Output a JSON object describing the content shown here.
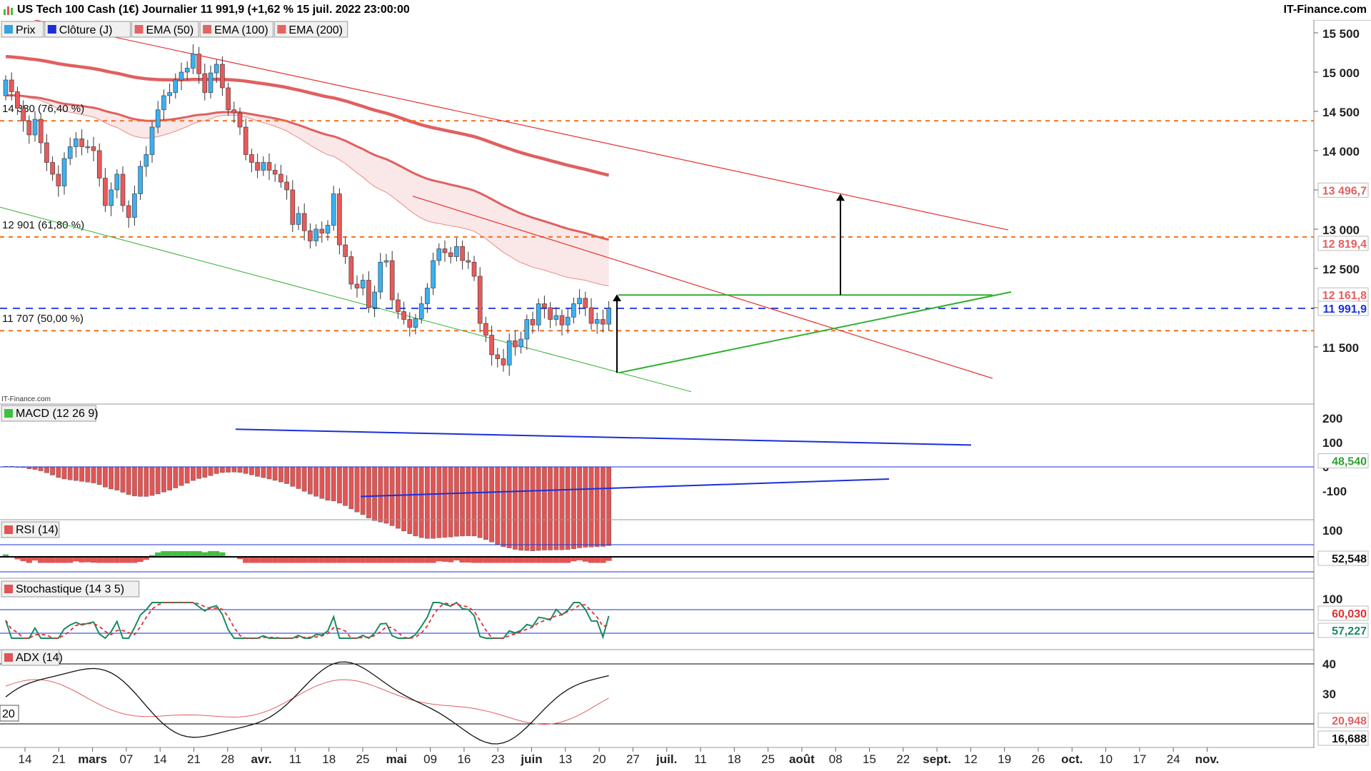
{
  "header": {
    "title": "US Tech 100 Cash (1€) Journalier 11 991,9 (+1,62 % 15 juil. 2022 23:00:00",
    "brand": "IT-Finance.com"
  },
  "legend": [
    {
      "label": "Prix",
      "color": "#3aa0e0"
    },
    {
      "label": "Clôture (J)",
      "color": "#1a2fd8"
    },
    {
      "label": "EMA (50)",
      "color": "#e06666"
    },
    {
      "label": "EMA (100)",
      "color": "#e06666"
    },
    {
      "label": "EMA (200)",
      "color": "#e06666"
    }
  ],
  "watermark": "IT-Finance.com",
  "colors": {
    "up": "#3cb0f0",
    "down": "#e85a5a",
    "ema": "#e06060",
    "fib": "#f07020",
    "close_line": "#1a2fd8",
    "channel": "#e83030",
    "triangle": "#30b030",
    "macd_up": "#40c040",
    "macd_down": "#e05555",
    "stoch_k": "#1a8a60",
    "stoch_d": "#e03030"
  },
  "panels": {
    "macd": {
      "label": "MACD (12 26 9)",
      "value": "48,540",
      "ticks": [
        "200",
        "100",
        "0",
        "-100"
      ]
    },
    "rsi": {
      "label": "RSI (14)",
      "value": "52,548",
      "ticks": [
        "100"
      ]
    },
    "stoch": {
      "label": "Stochastique (14 3 5)",
      "value_k": "60,030",
      "value_d": "57,227",
      "ticks": [
        "100"
      ]
    },
    "adx": {
      "label": "ADX (14)",
      "value_1": "20,948",
      "value_2": "16,688",
      "ticks": [
        "40",
        "30"
      ],
      "side_label": "20"
    }
  },
  "chart_data": {
    "type": "candlestick",
    "title": "US Tech 100 Cash (1€) Journalier",
    "last_close": 11991.9,
    "y_ticks": [
      "15 500",
      "15 000",
      "14 500",
      "14 000",
      "13 500",
      "13 000",
      "12 500",
      "12 000",
      "11 500"
    ],
    "fib_levels": [
      {
        "label": "14 380 (76,40 %)",
        "value": 14380
      },
      {
        "label": "12 901 (61,80 %)",
        "value": 12901
      },
      {
        "label": "11 707 (50,00 %)",
        "value": 11707
      }
    ],
    "price_tags": [
      {
        "label": "13 496,7",
        "value": 13496.7,
        "color": "#e06060"
      },
      {
        "label": "12 819,4",
        "value": 12819.4,
        "color": "#e06060"
      },
      {
        "label": "12 161,8",
        "value": 12161.8,
        "color": "#e06060"
      },
      {
        "label": "11 991,9",
        "value": 11991.9,
        "color": "#1a2fd8"
      }
    ],
    "x_labels": [
      "14",
      "21",
      "mars",
      "07",
      "14",
      "21",
      "28",
      "avr.",
      "11",
      "18",
      "25",
      "mai",
      "09",
      "16",
      "23",
      "juin",
      "13",
      "20",
      "27",
      "juil.",
      "11",
      "18",
      "25",
      "août",
      "08",
      "15",
      "22",
      "sept.",
      "12",
      "19",
      "26",
      "oct.",
      "10",
      "17",
      "24",
      "nov."
    ],
    "closes": [
      14900,
      14750,
      14540,
      14380,
      14200,
      14400,
      14100,
      13850,
      13700,
      13550,
      13900,
      14050,
      14150,
      14050,
      14050,
      14000,
      13650,
      13300,
      13500,
      13700,
      13300,
      13150,
      13450,
      13800,
      13950,
      14300,
      14520,
      14700,
      14740,
      14900,
      15000,
      15050,
      15230,
      14980,
      14740,
      14990,
      15100,
      14800,
      14520,
      14480,
      14300,
      13950,
      13850,
      13750,
      13850,
      13750,
      13700,
      13600,
      13500,
      13060,
      13200,
      12980,
      12850,
      13000,
      12950,
      13050,
      13450,
      12800,
      12650,
      12300,
      12250,
      12350,
      12000,
      12200,
      12580,
      12600,
      12100,
      11950,
      11850,
      11750,
      11860,
      12050,
      12250,
      12600,
      12750,
      12700,
      12650,
      12780,
      12600,
      12580,
      12400,
      11800,
      11650,
      11400,
      11350,
      11270,
      11580,
      11500,
      11600,
      11850,
      11780,
      12050,
      12000,
      11850,
      11900,
      11780,
      11880,
      12050,
      12120,
      12000,
      11800,
      11850,
      11790,
      11991.9
    ]
  }
}
